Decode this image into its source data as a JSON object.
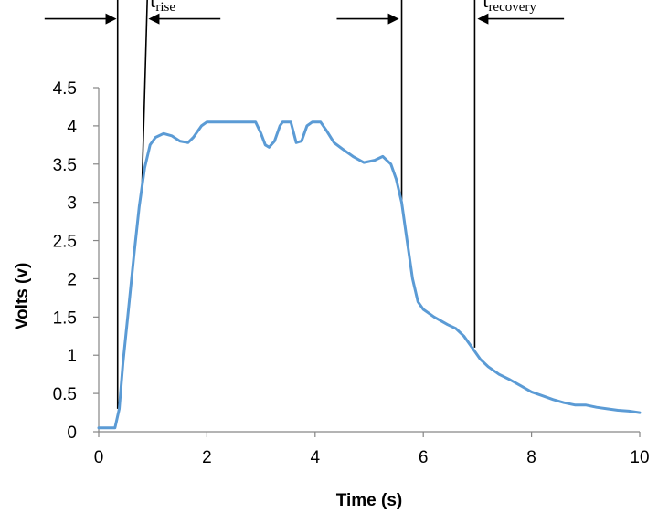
{
  "chart_data": {
    "type": "line",
    "title": "",
    "xlabel": "Time (s)",
    "ylabel": "Volts (v)",
    "xlim": [
      0,
      10
    ],
    "ylim": [
      0,
      4.5
    ],
    "xticks": [
      0,
      2,
      4,
      6,
      8,
      10
    ],
    "xtick_labels": [
      "0",
      "2",
      "4",
      "6",
      "8",
      "10"
    ],
    "yticks": [
      0,
      0.5,
      1,
      1.5,
      2,
      2.5,
      3,
      3.5,
      4,
      4.5
    ],
    "ytick_labels": [
      "0",
      "0.5",
      "1",
      "1.5",
      "2",
      "2.5",
      "3",
      "3.5",
      "4",
      "4.5"
    ],
    "grid": false,
    "legend": "none",
    "series": [
      {
        "color": "#5b9bd5",
        "x": [
          0,
          0.15,
          0.3,
          0.38,
          0.45,
          0.55,
          0.65,
          0.75,
          0.85,
          0.95,
          1.05,
          1.2,
          1.35,
          1.5,
          1.65,
          1.75,
          1.9,
          2.0,
          2.3,
          2.6,
          2.9,
          3.0,
          3.08,
          3.15,
          3.25,
          3.35,
          3.4,
          3.55,
          3.6,
          3.65,
          3.75,
          3.85,
          3.95,
          4.0,
          4.1,
          4.2,
          4.35,
          4.5,
          4.7,
          4.9,
          5.1,
          5.25,
          5.4,
          5.5,
          5.6,
          5.7,
          5.8,
          5.9,
          6.0,
          6.2,
          6.45,
          6.6,
          6.75,
          6.9,
          7.05,
          7.2,
          7.4,
          7.6,
          7.8,
          8.0,
          8.2,
          8.4,
          8.6,
          8.8,
          9.0,
          9.2,
          9.4,
          9.6,
          9.8,
          10.0
        ],
        "y": [
          0.05,
          0.05,
          0.05,
          0.3,
          0.9,
          1.6,
          2.3,
          2.95,
          3.45,
          3.75,
          3.85,
          3.9,
          3.87,
          3.8,
          3.78,
          3.85,
          4.0,
          4.05,
          4.05,
          4.05,
          4.05,
          3.9,
          3.75,
          3.72,
          3.8,
          4.0,
          4.05,
          4.05,
          3.92,
          3.78,
          3.8,
          4.0,
          4.05,
          4.05,
          4.05,
          3.95,
          3.78,
          3.7,
          3.6,
          3.52,
          3.55,
          3.6,
          3.5,
          3.3,
          3.0,
          2.5,
          2.0,
          1.7,
          1.6,
          1.5,
          1.4,
          1.35,
          1.25,
          1.1,
          0.95,
          0.85,
          0.75,
          0.68,
          0.6,
          0.52,
          0.47,
          0.42,
          0.38,
          0.35,
          0.35,
          0.32,
          0.3,
          0.28,
          0.27,
          0.25
        ]
      }
    ],
    "annotations": [
      {
        "id": "rise",
        "label_main": "t",
        "label_sub": "rise"
      },
      {
        "id": "recovery",
        "label_main": "t",
        "label_sub": "recovery"
      }
    ],
    "marker_lines": [
      {
        "x_bottom": 0.35,
        "y_bottom": 0.3,
        "x_top": 0.35,
        "y_top": 5.7
      },
      {
        "x_bottom": 0.8,
        "y_bottom": 3.2,
        "x_top": 0.9,
        "y_top": 5.7
      },
      {
        "x_bottom": 5.6,
        "y_bottom": 2.95,
        "x_top": 5.6,
        "y_top": 5.7
      },
      {
        "x_bottom": 6.95,
        "y_bottom": 1.1,
        "x_top": 6.95,
        "y_top": 5.7
      }
    ],
    "arrows": [
      {
        "from_x": -1.0,
        "to_x": 0.33,
        "y": 5.4
      },
      {
        "from_x": 2.25,
        "to_x": 0.92,
        "y": 5.4
      },
      {
        "from_x": 4.4,
        "to_x": 5.55,
        "y": 5.4
      },
      {
        "from_x": 8.6,
        "to_x": 7.0,
        "y": 5.4
      }
    ]
  }
}
